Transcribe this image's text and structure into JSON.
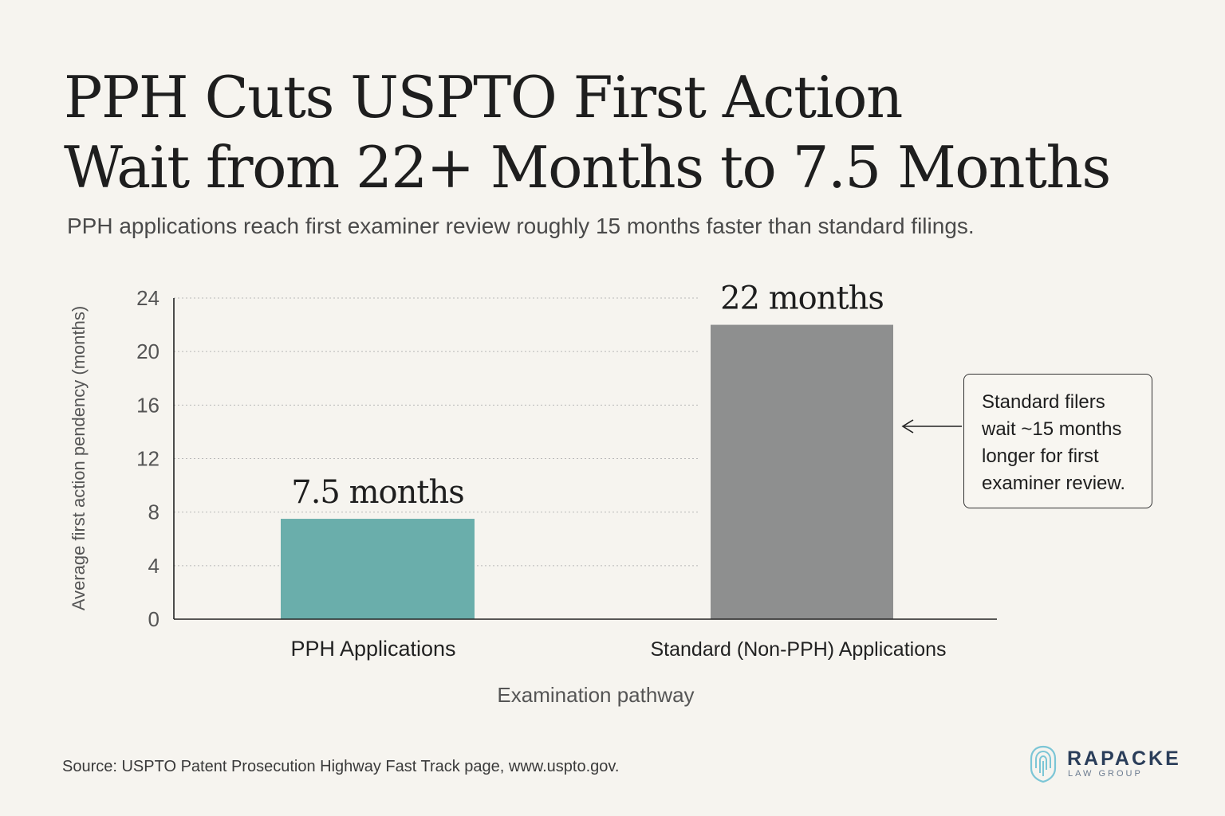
{
  "title_lines": [
    "PPH Cuts USPTO First Action",
    "Wait from 22+ Months to 7.5 Months"
  ],
  "subtitle": "PPH applications reach first examiner review roughly 15 months faster than standard filings.",
  "chart_data": {
    "type": "bar",
    "categories": [
      "PPH Applications",
      "Standard (Non-PPH) Applications"
    ],
    "values": [
      7.5,
      22
    ],
    "data_labels": [
      "7.5 months",
      "22 months"
    ],
    "xlabel": "Examination pathway",
    "ylabel": "Average first action pendency (months)",
    "ylim": [
      0,
      24
    ],
    "yticks": [
      0,
      4,
      8,
      12,
      16,
      20,
      24
    ],
    "grid": "horizontal-dotted",
    "colors": [
      "#6aaeab",
      "#8e8f8f"
    ]
  },
  "callout_lines": [
    "Standard filers",
    "wait ~15 months",
    "longer for first",
    "examiner review."
  ],
  "source": "Source: USPTO Patent Prosecution Highway Fast Track page, www.uspto.gov.",
  "logo": {
    "name": "RAPACKE",
    "sub": "LAW GROUP",
    "icon": "fingerprint-shield-icon",
    "color": "#2b3e5a",
    "accent": "#7cc6d6"
  }
}
